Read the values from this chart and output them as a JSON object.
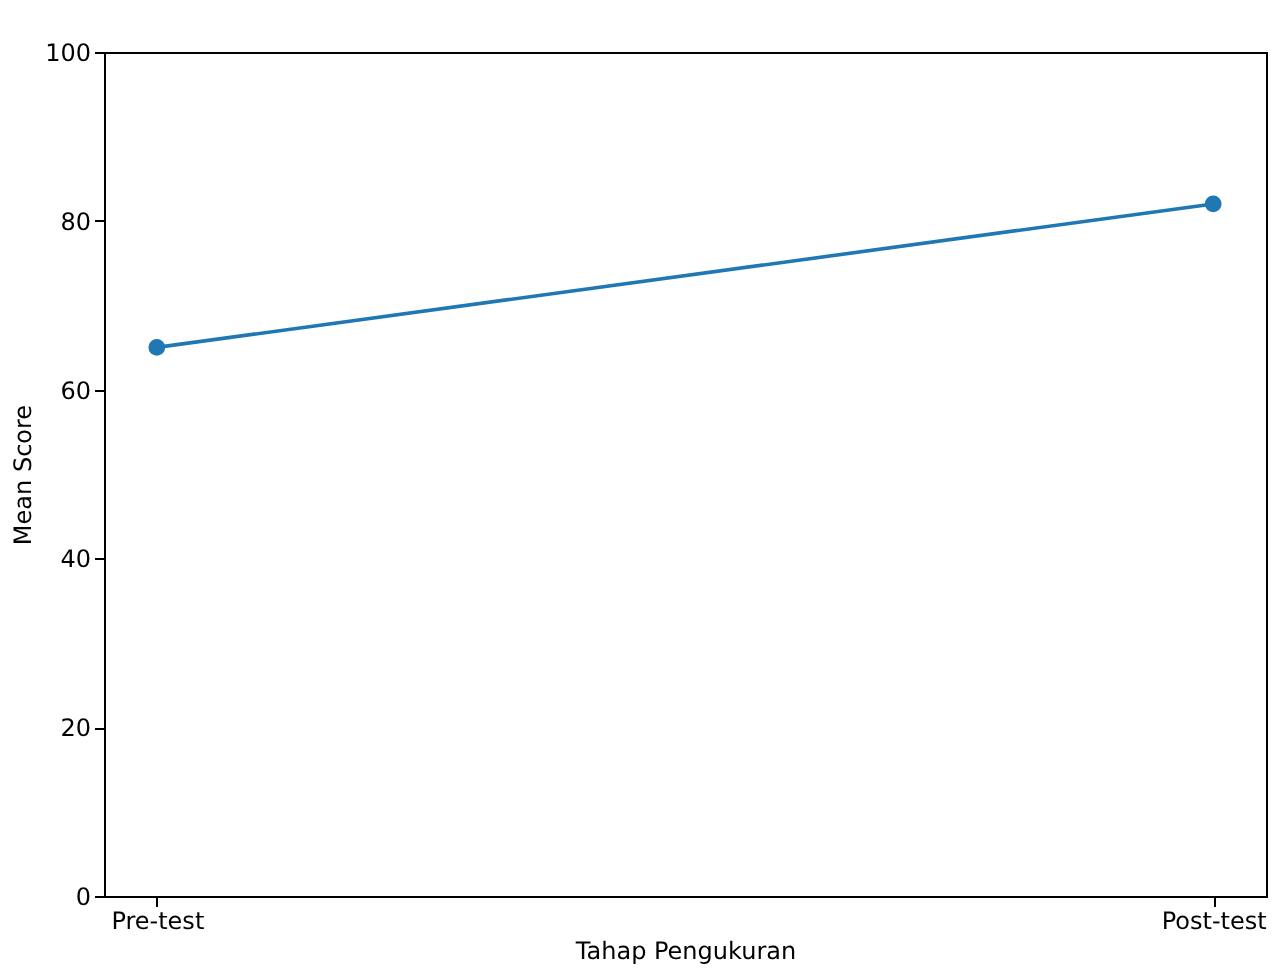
{
  "chart_data": {
    "type": "line",
    "xlabel": "Tahap Pengukuran",
    "ylabel": "Mean Score",
    "categories": [
      "Pre-test",
      "Post-test"
    ],
    "series": [
      {
        "color": "#1f77b4",
        "values": [
          65,
          82
        ]
      }
    ],
    "ylim": [
      0,
      100
    ],
    "yticks": [
      0,
      20,
      40,
      60,
      80,
      100
    ],
    "marker": "circle",
    "line_style": "solid",
    "grid": false
  }
}
